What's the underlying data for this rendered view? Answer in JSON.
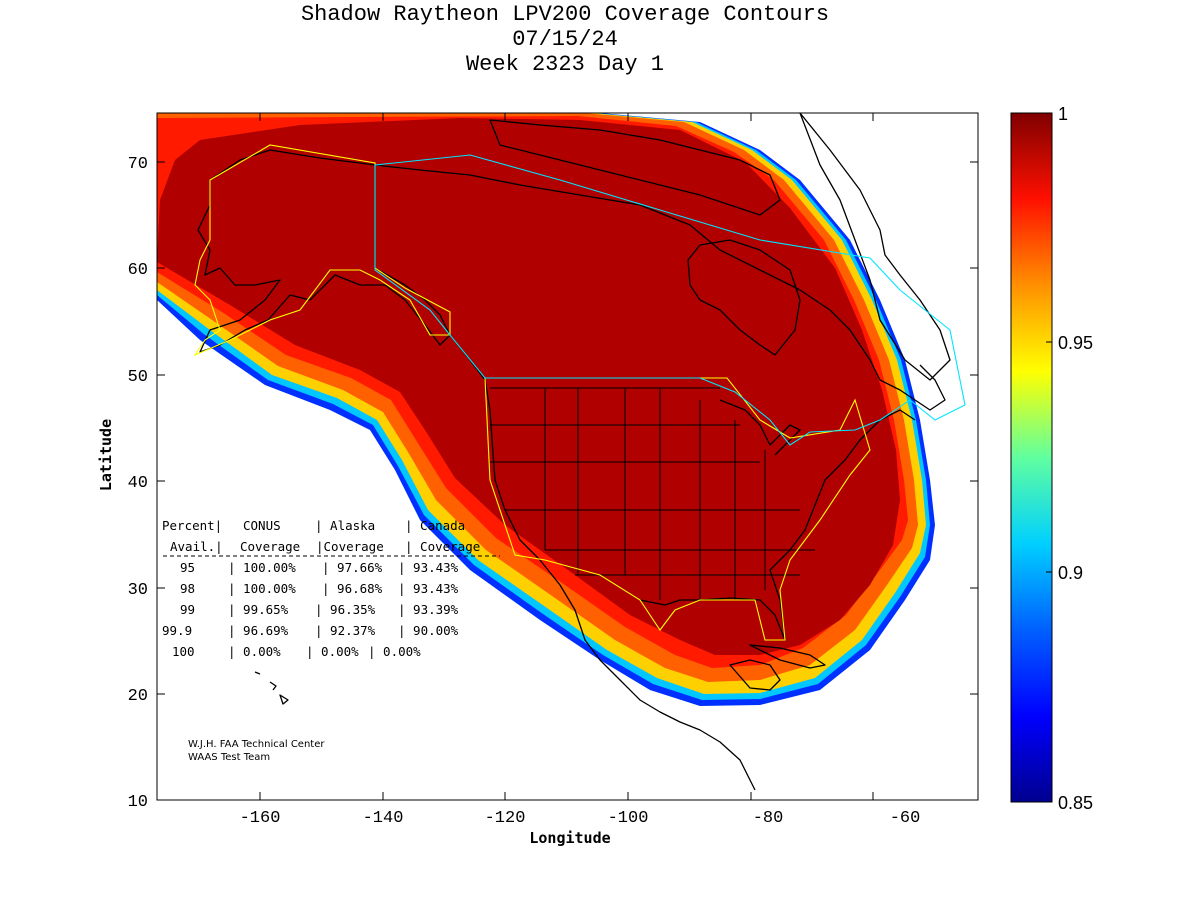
{
  "title": {
    "line1": "Shadow Raytheon LPV200 Coverage Contours",
    "line2": "07/15/24",
    "line3": "Week 2323 Day 1"
  },
  "axes": {
    "xlabel": "Longitude",
    "ylabel": "Latitude",
    "xticks": [
      "-160",
      "-140",
      "-120",
      "-100",
      "-80",
      "-60"
    ],
    "yticks": [
      "10",
      "20",
      "30",
      "40",
      "50",
      "60",
      "70"
    ]
  },
  "colorbar": {
    "ticks": [
      "1",
      "0.95",
      "0.9",
      "0.85"
    ],
    "colors": [
      "#00008f",
      "#0000ff",
      "#0080ff",
      "#00ffff",
      "#80ff80",
      "#ffff00",
      "#ff8000",
      "#ff0000",
      "#800000"
    ]
  },
  "coverage_table": {
    "header1": [
      "Percent|",
      "CONUS",
      "| Alaska",
      "| Canada"
    ],
    "header2": [
      "Avail.|",
      "Coverage",
      "|Coverage",
      "| Coverage"
    ],
    "rows": [
      [
        "95",
        "| 100.00%",
        "| 97.66%",
        "| 93.43%"
      ],
      [
        "98",
        "| 100.00%",
        "| 96.68%",
        "| 93.43%"
      ],
      [
        "99",
        "| 99.65%",
        "| 96.35%",
        "| 93.39%"
      ],
      [
        "99.9",
        "| 96.69%",
        "| 92.37%",
        "| 90.00%"
      ],
      [
        "100",
        "| 0.00%",
        "| 0.00%",
        "| 0.00%"
      ]
    ]
  },
  "credit": {
    "line1": "W.J.H. FAA Technical Center",
    "line2": "WAAS Test Team"
  },
  "colors": {
    "coverage_full": "#b00000",
    "alaska_canada_boundary": "#ffff00",
    "canada_boundary": "#00e5ff"
  }
}
